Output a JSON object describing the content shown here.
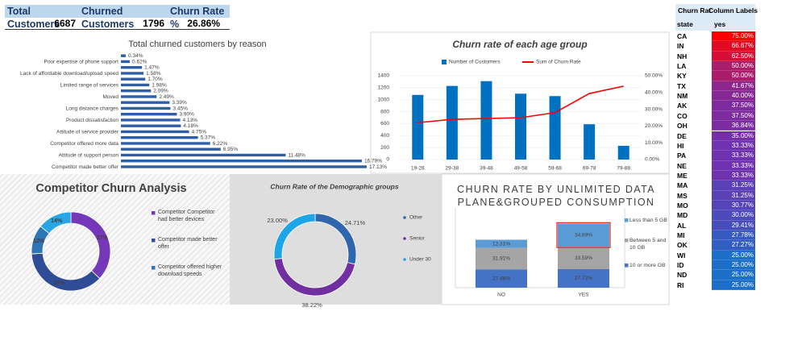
{
  "kpi": {
    "headers": [
      "Total Customers",
      "Churned Customers",
      "Churn Rate %"
    ],
    "values": [
      "6687",
      "1796",
      "26.86%"
    ]
  },
  "chart_data": [
    {
      "type": "bar",
      "orientation": "horizontal",
      "title": "Total churned customers by reason",
      "categories": [
        null,
        "Poor expertise of phone support",
        null,
        "Lack of affordable download/upload speed",
        null,
        "Limited range of services",
        null,
        "Moved",
        null,
        "Long distance charges",
        null,
        "Product dissatisfaction",
        null,
        "Attitude of service provider",
        null,
        "Competitor offered more data",
        null,
        "Attitude of support person",
        null,
        "Competitor made better offer"
      ],
      "values": [
        0.34,
        0.62,
        1.47,
        1.58,
        1.7,
        1.98,
        2.09,
        2.49,
        3.39,
        3.45,
        3.9,
        4.13,
        4.18,
        4.75,
        5.37,
        6.22,
        6.95,
        11.48,
        16.79,
        17.13
      ],
      "value_labels": [
        "0.34%",
        "0.62%",
        "1.47%",
        "1.58%",
        "1.70%",
        "1.98%",
        "2.09%",
        "2.49%",
        "3.39%",
        "3.45%",
        "3.90%",
        "4.13%",
        "4.18%",
        "4.75%",
        "5.37%",
        "6.22%",
        "6.95%",
        "11.48%",
        "16.79%",
        "17.13%"
      ],
      "color": "#2f5ea8"
    },
    {
      "type": "combo",
      "title": "Churn rate of each age group",
      "categories": [
        "19-28",
        "29-38",
        "39-48",
        "49-58",
        "59-68",
        "69-78",
        "79-88"
      ],
      "series": [
        {
          "name": "Number of Customers",
          "type": "bar",
          "color": "#0070c0",
          "values": [
            1080,
            1230,
            1310,
            1100,
            1060,
            590,
            230
          ]
        },
        {
          "name": "Sum of Churn Rate",
          "type": "line",
          "color": "#ff0000",
          "axis": "y2",
          "values": [
            22,
            24,
            24.5,
            25,
            28,
            39.4,
            43.8
          ]
        }
      ],
      "ylim": [
        0,
        1400
      ],
      "yticks": [
        0,
        200,
        400,
        600,
        800,
        1000,
        1200,
        1400
      ],
      "y2lim": [
        0,
        50
      ],
      "y2ticks": [
        {
          "value": 0,
          "label": "0.00%"
        },
        {
          "value": 10,
          "label": "10.00%"
        },
        {
          "value": 20,
          "label": "20.00%"
        },
        {
          "value": 30,
          "label": "30.00%"
        },
        {
          "value": 40,
          "label": "40.00%"
        },
        {
          "value": 50,
          "label": "50.00%"
        }
      ]
    },
    {
      "type": "donut",
      "title": "Competitor Churn Analysis",
      "categories": [
        "Competitor Competitor had better devices",
        "Competitor made better offer",
        "Competitor offered higher download speeds",
        null
      ],
      "values": [
        37,
        37,
        12,
        14
      ],
      "value_labels": [
        "37%",
        "37%",
        "12%",
        "14%"
      ],
      "colors": [
        "#7438b8",
        "#2f4d96",
        "#2e75b6",
        "#28a6e3"
      ]
    },
    {
      "type": "donut",
      "title": "Churn Rate of the Demographic groups",
      "categories": [
        "Other",
        "Senior",
        "Under 30"
      ],
      "values": [
        24.71,
        38.22,
        23.0
      ],
      "value_labels": [
        "24.71%",
        "38.22%",
        "23.00%"
      ],
      "colors": [
        "#2f66ad",
        "#7030a0",
        "#1ea5e8"
      ]
    },
    {
      "type": "stacked_bar",
      "title": "CHURN RATE BY UNLIMITED DATA PLANE&GROUPED CONSUMPTION",
      "categories": [
        "NO",
        "YES"
      ],
      "series": [
        {
          "name": "10 or more GB",
          "color": "#4472c4",
          "values": [
            27.46,
            27.72
          ],
          "value_labels": [
            "27.46%",
            "27.72%"
          ]
        },
        {
          "name": "Between 5 and 10 GB",
          "color": "#a5a5a5",
          "values": [
            31.91,
            33.59
          ],
          "value_labels": [
            "31.91%",
            "33.59%"
          ]
        },
        {
          "name": "Less than 5 GB",
          "color": "#5b9bd5",
          "values": [
            12.31,
            34.69
          ],
          "value_labels": [
            "12.31%",
            "34.69%"
          ]
        }
      ]
    }
  ],
  "state_table": {
    "header": [
      "Churn Rat",
      "Column Labels"
    ],
    "columns": [
      "state",
      "yes"
    ],
    "rows": [
      [
        "CA",
        "75.00%"
      ],
      [
        "IN",
        "66.67%"
      ],
      [
        "NH",
        "62.50%"
      ],
      [
        "LA",
        "50.00%"
      ],
      [
        "KY",
        "50.00%"
      ],
      [
        "TX",
        "41.67%"
      ],
      [
        "NM",
        "40.00%"
      ],
      [
        "AK",
        "37.50%"
      ],
      [
        "CO",
        "37.50%"
      ],
      [
        "OH",
        "36.84%"
      ],
      [
        "DE",
        "35.00%"
      ],
      [
        "HI",
        "33.33%"
      ],
      [
        "PA",
        "33.33%"
      ],
      [
        "NE",
        "33.33%"
      ],
      [
        "ME",
        "33.33%"
      ],
      [
        "MA",
        "31.25%"
      ],
      [
        "MS",
        "31.25%"
      ],
      [
        "MO",
        "30.77%"
      ],
      [
        "MD",
        "30.00%"
      ],
      [
        "AL",
        "29.41%"
      ],
      [
        "MI",
        "27.78%"
      ],
      [
        "OK",
        "27.27%"
      ],
      [
        "WI",
        "25.00%"
      ],
      [
        "ID",
        "25.00%"
      ],
      [
        "ND",
        "25.00%"
      ],
      [
        "RI",
        "25.00%"
      ]
    ]
  }
}
